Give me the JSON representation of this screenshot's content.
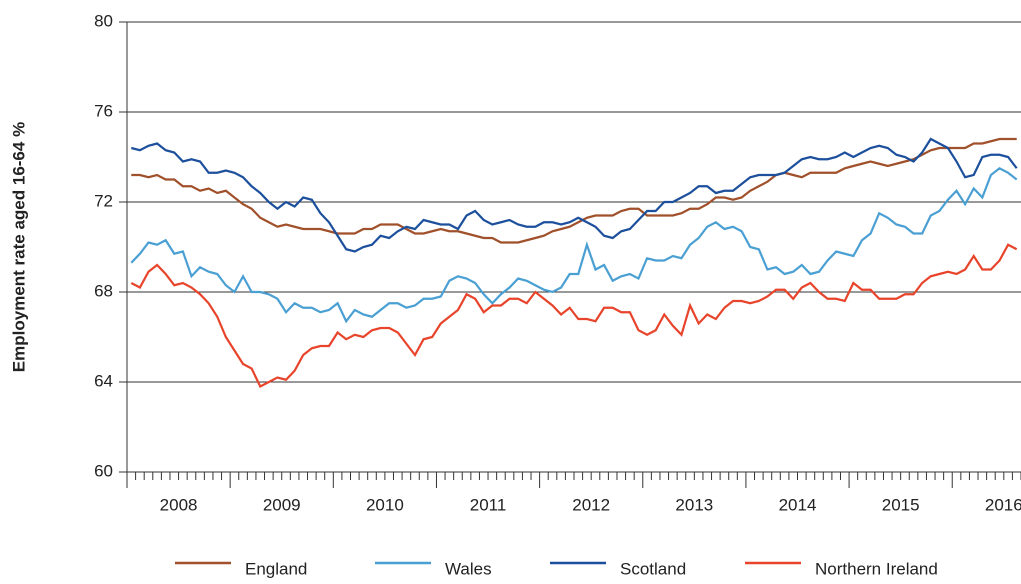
{
  "chart_data": {
    "type": "line",
    "y_label": "Employment rate aged 16-64 %",
    "categories": [
      null,
      null,
      null,
      null,
      null,
      null,
      "2008",
      null,
      null,
      null,
      null,
      null,
      null,
      null,
      null,
      null,
      null,
      null,
      "2009",
      null,
      null,
      null,
      null,
      null,
      null,
      null,
      null,
      null,
      null,
      null,
      "2010",
      null,
      null,
      null,
      null,
      null,
      null,
      null,
      null,
      null,
      null,
      null,
      "2011",
      null,
      null,
      null,
      null,
      null,
      null,
      null,
      null,
      null,
      null,
      null,
      "2012",
      null,
      null,
      null,
      null,
      null,
      null,
      null,
      null,
      null,
      null,
      null,
      "2013",
      null,
      null,
      null,
      null,
      null,
      null,
      null,
      null,
      null,
      null,
      null,
      "2014",
      null,
      null,
      null,
      null,
      null,
      null,
      null,
      null,
      null,
      null,
      null,
      "2015",
      null,
      null,
      null,
      null,
      null,
      null,
      null,
      null,
      null,
      null,
      null,
      "2016",
      null
    ],
    "ylim": [
      60,
      80
    ],
    "yticks": [
      60,
      64,
      68,
      72,
      76,
      80
    ],
    "grid": true,
    "legend": "bottom",
    "series": [
      {
        "name": "England",
        "color": "#a0502a",
        "values": [
          73.2,
          73.2,
          73.1,
          73.2,
          73.0,
          73.0,
          72.7,
          72.7,
          72.5,
          72.6,
          72.4,
          72.5,
          72.2,
          71.9,
          71.7,
          71.3,
          71.1,
          70.9,
          71.0,
          70.9,
          70.8,
          70.8,
          70.8,
          70.7,
          70.6,
          70.6,
          70.6,
          70.8,
          70.8,
          71.0,
          71.0,
          71.0,
          70.8,
          70.6,
          70.6,
          70.7,
          70.8,
          70.7,
          70.7,
          70.6,
          70.5,
          70.4,
          70.4,
          70.2,
          70.2,
          70.2,
          70.3,
          70.4,
          70.5,
          70.7,
          70.8,
          70.9,
          71.1,
          71.3,
          71.4,
          71.4,
          71.4,
          71.6,
          71.7,
          71.7,
          71.4,
          71.4,
          71.4,
          71.4,
          71.5,
          71.7,
          71.7,
          71.9,
          72.2,
          72.2,
          72.1,
          72.2,
          72.5,
          72.7,
          72.9,
          73.2,
          73.3,
          73.2,
          73.1,
          73.3,
          73.3,
          73.3,
          73.3,
          73.5,
          73.6,
          73.7,
          73.8,
          73.7,
          73.6,
          73.7,
          73.8,
          73.9,
          74.1,
          74.3,
          74.4,
          74.4,
          74.4,
          74.4,
          74.6,
          74.6,
          74.7,
          74.8,
          74.8,
          74.8
        ]
      },
      {
        "name": "Wales",
        "color": "#4a9fd3",
        "values": [
          69.3,
          69.7,
          70.2,
          70.1,
          70.3,
          69.7,
          69.8,
          68.7,
          69.1,
          68.9,
          68.8,
          68.3,
          68.0,
          68.7,
          68.0,
          68.0,
          67.9,
          67.7,
          67.1,
          67.5,
          67.3,
          67.3,
          67.1,
          67.2,
          67.5,
          66.7,
          67.2,
          67.0,
          66.9,
          67.2,
          67.5,
          67.5,
          67.3,
          67.4,
          67.7,
          67.7,
          67.8,
          68.5,
          68.7,
          68.6,
          68.4,
          67.9,
          67.5,
          67.9,
          68.2,
          68.6,
          68.5,
          68.3,
          68.1,
          68.0,
          68.2,
          68.8,
          68.8,
          70.1,
          69.0,
          69.2,
          68.5,
          68.7,
          68.8,
          68.6,
          69.5,
          69.4,
          69.4,
          69.6,
          69.5,
          70.1,
          70.4,
          70.9,
          71.1,
          70.8,
          70.9,
          70.7,
          70.0,
          69.9,
          69.0,
          69.1,
          68.8,
          68.9,
          69.2,
          68.8,
          68.9,
          69.4,
          69.8,
          69.7,
          69.6,
          70.3,
          70.6,
          71.5,
          71.3,
          71.0,
          70.9,
          70.6,
          70.6,
          71.4,
          71.6,
          72.1,
          72.5,
          71.9,
          72.6,
          72.2,
          73.2,
          73.5,
          73.3,
          73.0
        ]
      },
      {
        "name": "Scotland",
        "color": "#1c4f9c",
        "values": [
          74.4,
          74.3,
          74.5,
          74.6,
          74.3,
          74.2,
          73.8,
          73.9,
          73.8,
          73.3,
          73.3,
          73.4,
          73.3,
          73.1,
          72.7,
          72.4,
          72.0,
          71.7,
          72.0,
          71.8,
          72.2,
          72.1,
          71.5,
          71.1,
          70.5,
          69.9,
          69.8,
          70.0,
          70.1,
          70.5,
          70.4,
          70.7,
          70.9,
          70.8,
          71.2,
          71.1,
          71.0,
          71.0,
          70.8,
          71.4,
          71.6,
          71.2,
          71.0,
          71.1,
          71.2,
          71.0,
          70.9,
          70.9,
          71.1,
          71.1,
          71.0,
          71.1,
          71.3,
          71.1,
          70.9,
          70.5,
          70.4,
          70.7,
          70.8,
          71.2,
          71.6,
          71.6,
          72.0,
          72.0,
          72.2,
          72.4,
          72.7,
          72.7,
          72.4,
          72.5,
          72.5,
          72.8,
          73.1,
          73.2,
          73.2,
          73.2,
          73.3,
          73.6,
          73.9,
          74.0,
          73.9,
          73.9,
          74.0,
          74.2,
          74.0,
          74.2,
          74.4,
          74.5,
          74.4,
          74.1,
          74.0,
          73.8,
          74.2,
          74.8,
          74.6,
          74.4,
          73.8,
          73.1,
          73.2,
          74.0,
          74.1,
          74.1,
          74.0,
          73.5
        ]
      },
      {
        "name": "Northern Ireland",
        "color": "#e8442b",
        "values": [
          68.4,
          68.2,
          68.9,
          69.2,
          68.8,
          68.3,
          68.4,
          68.2,
          67.9,
          67.5,
          66.9,
          66.0,
          65.4,
          64.8,
          64.6,
          63.8,
          64.0,
          64.2,
          64.1,
          64.5,
          65.2,
          65.5,
          65.6,
          65.6,
          66.2,
          65.9,
          66.1,
          66.0,
          66.3,
          66.4,
          66.4,
          66.2,
          65.7,
          65.2,
          65.9,
          66.0,
          66.6,
          66.9,
          67.2,
          67.9,
          67.7,
          67.1,
          67.4,
          67.4,
          67.7,
          67.7,
          67.5,
          68.0,
          67.7,
          67.4,
          67.0,
          67.3,
          66.8,
          66.8,
          66.7,
          67.3,
          67.3,
          67.1,
          67.1,
          66.3,
          66.1,
          66.3,
          67.0,
          66.5,
          66.1,
          67.4,
          66.6,
          67.0,
          66.8,
          67.3,
          67.6,
          67.6,
          67.5,
          67.6,
          67.8,
          68.1,
          68.1,
          67.7,
          68.2,
          68.4,
          68.0,
          67.7,
          67.7,
          67.6,
          68.4,
          68.1,
          68.1,
          67.7,
          67.7,
          67.7,
          67.9,
          67.9,
          68.4,
          68.7,
          68.8,
          68.9,
          68.8,
          69.0,
          69.6,
          69.0,
          69.0,
          69.4,
          70.1,
          69.9
        ]
      }
    ]
  }
}
